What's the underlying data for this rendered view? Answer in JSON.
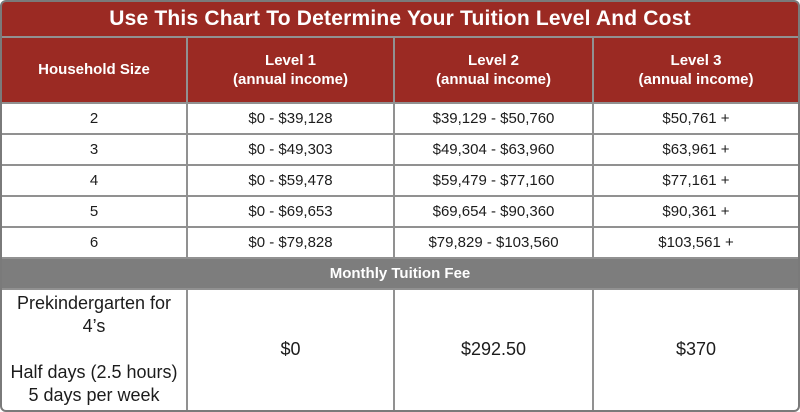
{
  "title": "Use This Chart To Determine Your Tuition Level And Cost",
  "colors": {
    "header_red": "#9b2a23",
    "section_gray": "#7d7d7d",
    "gridline_gray": "#919191",
    "text_dark": "#1c1c1c",
    "text_light": "#ffffff"
  },
  "table": {
    "headers": [
      "Household Size",
      "Level 1\n(annual income)",
      "Level 2\n(annual income)",
      "Level 3\n(annual income)"
    ],
    "rows": [
      [
        "2",
        "$0 - $39,128",
        "$39,129 - $50,760",
        "$50,761 +"
      ],
      [
        "3",
        "$0 - $49,303",
        "$49,304 - $63,960",
        "$63,961 +"
      ],
      [
        "4",
        "$0 - $59,478",
        "$59,479 - $77,160",
        "$77,161 +"
      ],
      [
        "5",
        "$0 - $69,653",
        "$69,654 - $90,360",
        "$90,361 +"
      ],
      [
        "6",
        "$0 - $79,828",
        "$79,829 - $103,560",
        "$103,561 +"
      ]
    ],
    "section_label": "Monthly Tuition Fee",
    "fee_row": {
      "program": "Prekindergarten for 4’s",
      "schedule": "Half days (2.5 hours)\n5 days per week",
      "values": [
        "$0",
        "$292.50",
        "$370"
      ]
    }
  },
  "chart_data": {
    "type": "table",
    "title": "Use This Chart To Determine Your Tuition Level And Cost",
    "columns": [
      "Household Size",
      "Level 1 (annual income)",
      "Level 2 (annual income)",
      "Level 3 (annual income)"
    ],
    "rows": [
      [
        "2",
        "$0 - $39,128",
        "$39,129 - $50,760",
        "$50,761 +"
      ],
      [
        "3",
        "$0 - $49,303",
        "$49,304 - $63,960",
        "$63,961 +"
      ],
      [
        "4",
        "$0 - $59,478",
        "$59,479 - $77,160",
        "$77,161 +"
      ],
      [
        "5",
        "$0 - $69,653",
        "$69,654 - $90,360",
        "$90,361 +"
      ],
      [
        "6",
        "$0 - $79,828",
        "$79,829 - $103,560",
        "$103,561 +"
      ]
    ],
    "section_header": "Monthly Tuition Fee",
    "fee_row": [
      "Prekindergarten for 4’s — Half days (2.5 hours), 5 days per week",
      "$0",
      "$292.50",
      "$370"
    ],
    "layout_hints": {
      "header_fill": "#9b2a23",
      "section_fill": "#7d7d7d",
      "grid": "on"
    }
  }
}
